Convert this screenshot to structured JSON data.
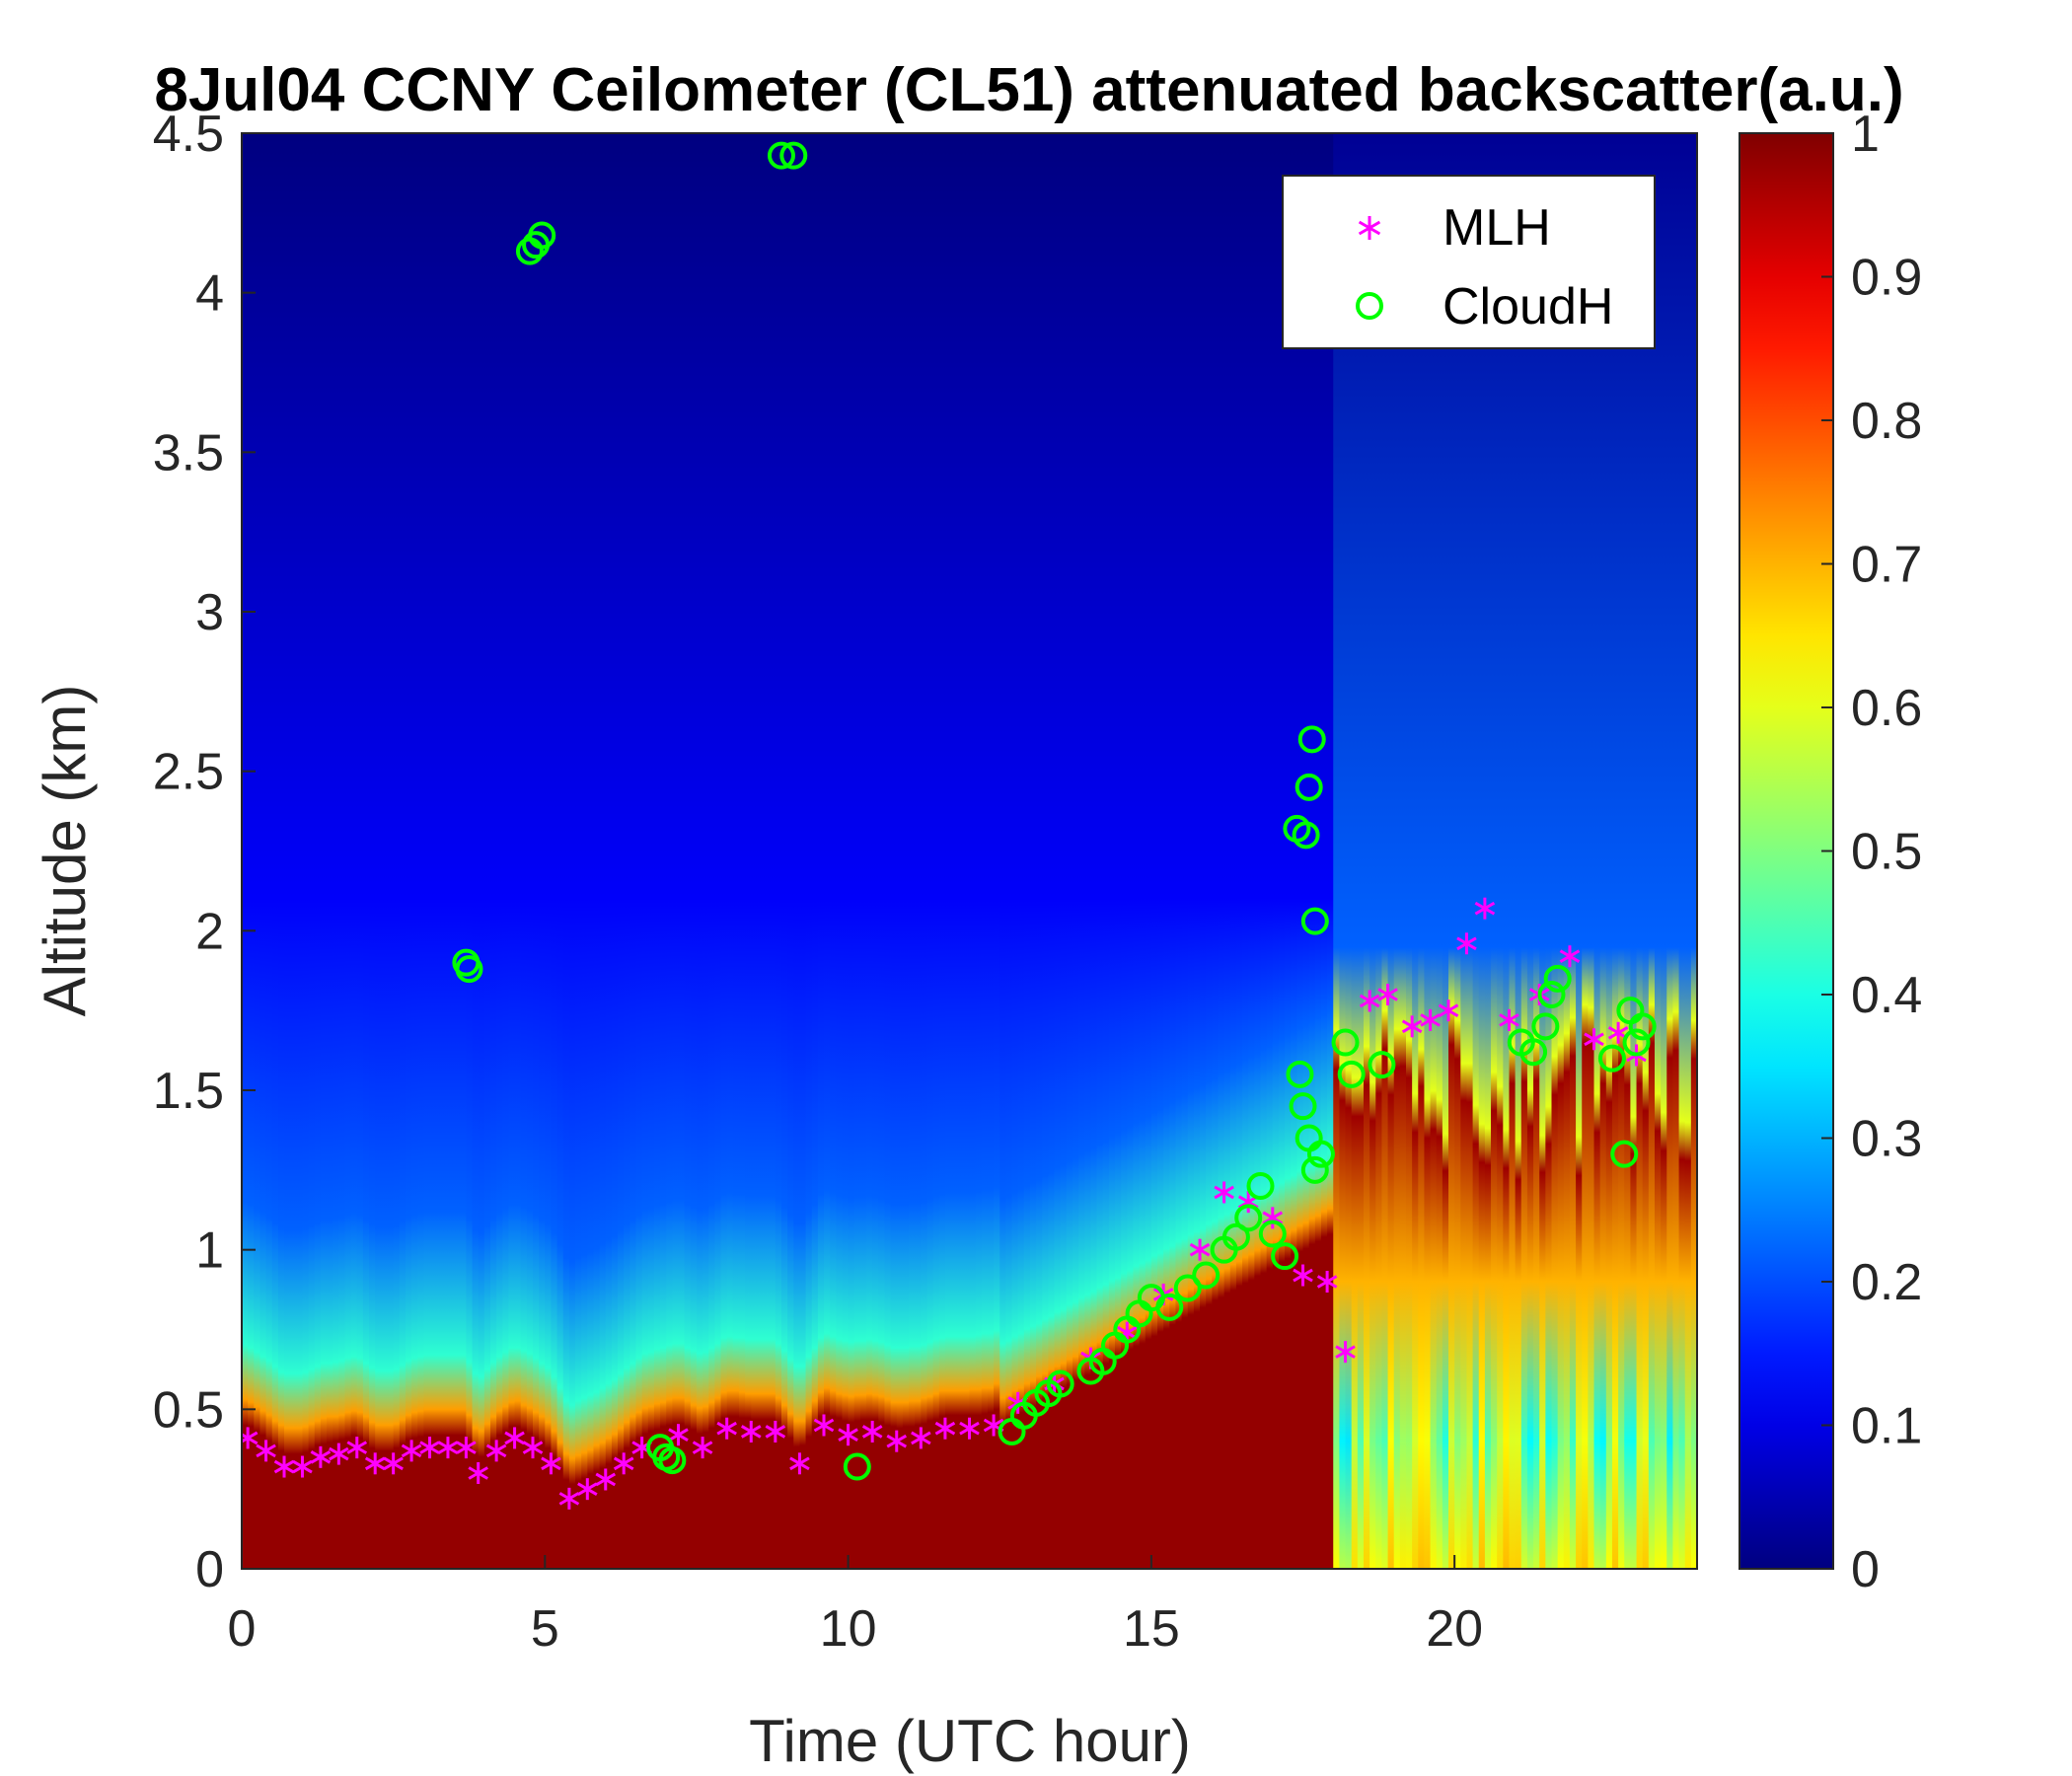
{
  "chart_data": {
    "type": "heatmap",
    "title": "8Jul04 CCNY Ceilometer (CL51) attenuated backscatter(a.u.)",
    "xlabel": "Time (UTC hour)",
    "ylabel": "Altitude (km)",
    "xlim": [
      0,
      24
    ],
    "ylim": [
      0,
      4.5
    ],
    "xticks": [
      "0",
      "5",
      "10",
      "15",
      "20"
    ],
    "yticks": [
      "0",
      "0.5",
      "1",
      "1.5",
      "2",
      "2.5",
      "3",
      "3.5",
      "4",
      "4.5"
    ],
    "colorbar": {
      "colormap": "jet",
      "range": [
        0,
        1
      ],
      "ticks": [
        "0",
        "0.1",
        "0.2",
        "0.3",
        "0.4",
        "0.5",
        "0.6",
        "0.7",
        "0.8",
        "0.9",
        "1"
      ]
    },
    "legend": {
      "placement": "top-right"
    },
    "series": [
      {
        "name": "MLH",
        "marker": "asterisk",
        "color": "#ff00ff",
        "x": [
          0.1,
          0.4,
          0.7,
          1.0,
          1.3,
          1.6,
          1.9,
          2.2,
          2.5,
          2.8,
          3.1,
          3.4,
          3.7,
          3.9,
          4.2,
          4.5,
          4.8,
          5.1,
          5.4,
          5.7,
          6.0,
          6.3,
          6.6,
          7.2,
          7.6,
          8.0,
          8.4,
          8.8,
          9.2,
          9.6,
          10.0,
          10.4,
          10.8,
          11.2,
          11.6,
          12.0,
          12.4,
          12.8,
          13.4,
          14.0,
          14.6,
          15.2,
          15.8,
          16.2,
          16.6,
          17.0,
          17.5,
          17.9,
          18.2,
          18.6,
          18.9,
          19.3,
          19.6,
          19.9,
          20.2,
          20.5,
          20.9,
          21.4,
          21.9,
          22.3,
          22.7,
          23.0
        ],
        "y": [
          0.41,
          0.37,
          0.32,
          0.32,
          0.35,
          0.36,
          0.38,
          0.33,
          0.33,
          0.37,
          0.38,
          0.38,
          0.38,
          0.3,
          0.37,
          0.41,
          0.38,
          0.33,
          0.22,
          0.25,
          0.28,
          0.33,
          0.38,
          0.42,
          0.38,
          0.44,
          0.43,
          0.43,
          0.33,
          0.45,
          0.42,
          0.43,
          0.4,
          0.41,
          0.44,
          0.44,
          0.45,
          0.52,
          0.58,
          0.66,
          0.74,
          0.86,
          1.0,
          1.18,
          1.15,
          1.1,
          0.92,
          0.9,
          0.68,
          1.78,
          1.8,
          1.7,
          1.72,
          1.75,
          1.96,
          2.07,
          1.72,
          1.8,
          1.92,
          1.66,
          1.68,
          1.61
        ]
      },
      {
        "name": "CloudH",
        "marker": "circle",
        "color": "#00ff00",
        "x": [
          3.7,
          3.75,
          4.75,
          4.85,
          4.95,
          8.9,
          9.1,
          6.9,
          7.0,
          7.1,
          10.15,
          12.7,
          12.9,
          13.1,
          13.3,
          13.5,
          14.0,
          14.2,
          14.4,
          14.6,
          14.8,
          15.0,
          15.3,
          15.6,
          15.9,
          16.2,
          16.4,
          16.6,
          16.8,
          17.0,
          17.2,
          17.4,
          17.55,
          17.6,
          17.65,
          17.7,
          17.45,
          17.5,
          17.6,
          17.7,
          17.8,
          18.2,
          18.3,
          18.8,
          21.1,
          21.3,
          21.5,
          21.6,
          21.7,
          22.6,
          22.8,
          22.9,
          23.0,
          23.1
        ],
        "y": [
          1.9,
          1.88,
          4.13,
          4.15,
          4.18,
          4.43,
          4.43,
          0.38,
          0.35,
          0.34,
          0.32,
          0.43,
          0.48,
          0.52,
          0.55,
          0.58,
          0.62,
          0.65,
          0.7,
          0.75,
          0.8,
          0.85,
          0.82,
          0.88,
          0.92,
          1.0,
          1.04,
          1.1,
          1.2,
          1.05,
          0.98,
          2.32,
          2.3,
          2.45,
          2.6,
          2.03,
          1.55,
          1.45,
          1.35,
          1.25,
          1.3,
          1.65,
          1.55,
          1.58,
          1.65,
          1.62,
          1.7,
          1.8,
          1.85,
          1.6,
          1.3,
          1.75,
          1.65,
          1.7
        ]
      }
    ]
  }
}
